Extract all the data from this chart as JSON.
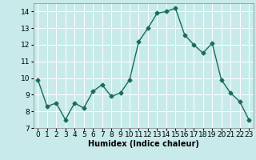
{
  "x": [
    0,
    1,
    2,
    3,
    4,
    5,
    6,
    7,
    8,
    9,
    10,
    11,
    12,
    13,
    14,
    15,
    16,
    17,
    18,
    19,
    20,
    21,
    22,
    23
  ],
  "y": [
    9.9,
    8.3,
    8.5,
    7.5,
    8.5,
    8.2,
    9.2,
    9.6,
    8.9,
    9.1,
    9.9,
    12.2,
    13.0,
    13.9,
    14.0,
    14.2,
    12.6,
    12.0,
    11.5,
    12.1,
    9.9,
    9.1,
    8.6,
    7.5
  ],
  "line_color": "#1a6b5a",
  "marker": "D",
  "marker_size": 2.5,
  "bg_color": "#c8eaea",
  "grid_color": "#ffffff",
  "xlabel": "Humidex (Indice chaleur)",
  "xlim": [
    -0.5,
    23.5
  ],
  "ylim": [
    7,
    14.5
  ],
  "yticks": [
    7,
    8,
    9,
    10,
    11,
    12,
    13,
    14
  ],
  "xticks": [
    0,
    1,
    2,
    3,
    4,
    5,
    6,
    7,
    8,
    9,
    10,
    11,
    12,
    13,
    14,
    15,
    16,
    17,
    18,
    19,
    20,
    21,
    22,
    23
  ],
  "xlabel_fontsize": 7,
  "tick_fontsize": 6.5,
  "line_width": 1.0
}
